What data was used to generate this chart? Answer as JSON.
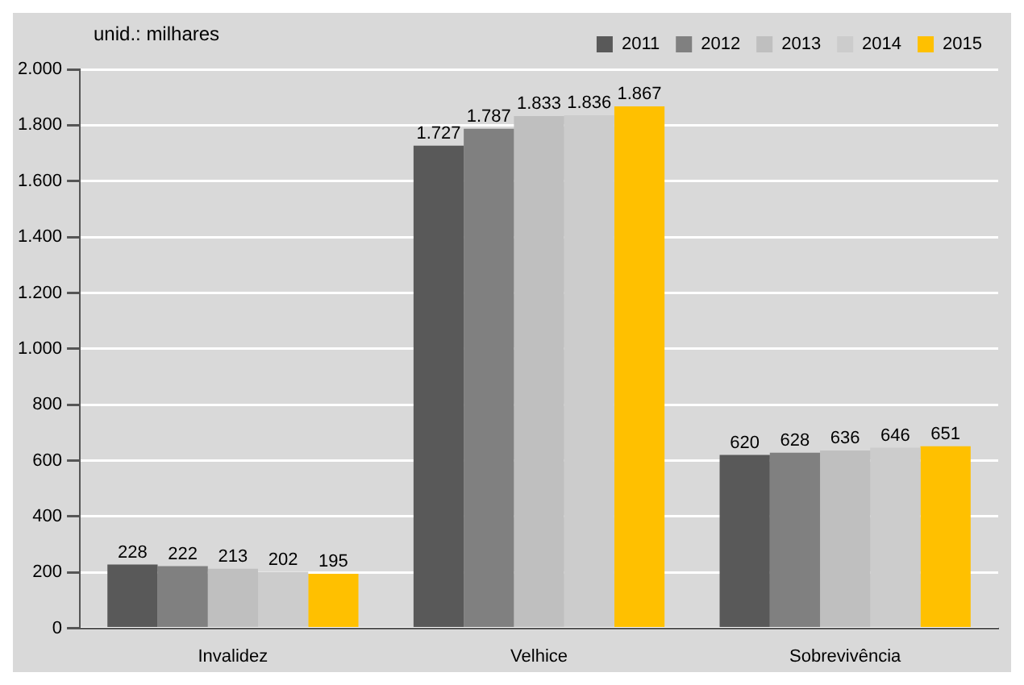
{
  "chart_data": {
    "type": "bar",
    "categories": [
      "Invalidez",
      "Velhice",
      "Sobrevivência"
    ],
    "series": [
      {
        "name": "2011",
        "color": "#595959",
        "values": [
          228,
          1727,
          620
        ],
        "value_labels": [
          "228",
          "1.727",
          "620"
        ]
      },
      {
        "name": "2012",
        "color": "#808080",
        "values": [
          222,
          1787,
          628
        ],
        "value_labels": [
          "222",
          "1.787",
          "628"
        ]
      },
      {
        "name": "2013",
        "color": "#bfbfbf",
        "values": [
          213,
          1833,
          636
        ],
        "value_labels": [
          "213",
          "1.833",
          "636"
        ]
      },
      {
        "name": "2014",
        "color": "#cccccc",
        "values": [
          202,
          1836,
          646
        ],
        "value_labels": [
          "202",
          "1.836",
          "646"
        ]
      },
      {
        "name": "2015",
        "color": "#ffc000",
        "values": [
          195,
          1867,
          651
        ],
        "value_labels": [
          "195",
          "1.867",
          "651"
        ]
      }
    ],
    "ylim": [
      0,
      2000
    ],
    "yticks": [
      0,
      200,
      400,
      600,
      800,
      {
        "value": 1000,
        "label": "1.000"
      },
      {
        "value": 1200,
        "label": "1.200"
      },
      {
        "value": 1400,
        "label": "1.400"
      },
      {
        "value": 1600,
        "label": "1.600"
      },
      {
        "value": 1800,
        "label": "1.800"
      },
      {
        "value": 2000,
        "label": "2.000"
      }
    ],
    "grid": "y",
    "legend": "top right",
    "annotations": [
      "unid.: milhares"
    ]
  }
}
